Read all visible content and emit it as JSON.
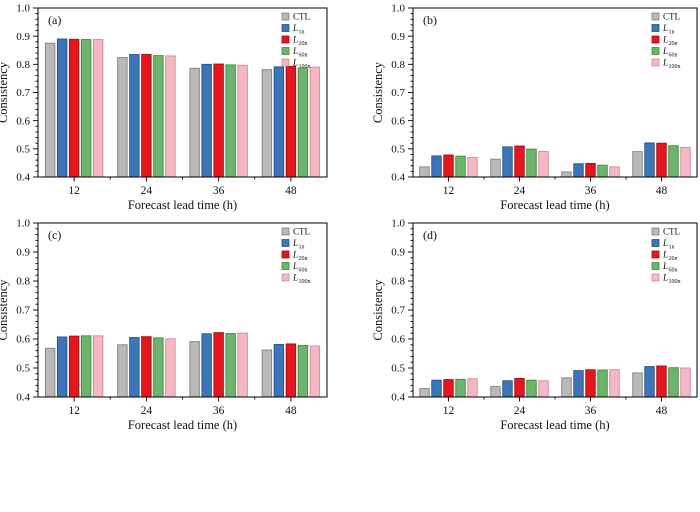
{
  "figure": {
    "background": "#ffffff",
    "text_color": "#111111",
    "axis_color": "#000000",
    "series_style": [
      {
        "key": "CTL",
        "label": "CTL",
        "sub": "",
        "fill": "#b9b9b9",
        "edge": "#808080"
      },
      {
        "key": "L1n",
        "label": "L",
        "sub": "1n",
        "fill": "#3b76ba",
        "edge": "#24558c"
      },
      {
        "key": "L20n",
        "label": "L",
        "sub": "20n",
        "fill": "#e8151d",
        "edge": "#a30d12"
      },
      {
        "key": "L60n",
        "label": "L",
        "sub": "60n",
        "fill": "#6cb66c",
        "edge": "#3f8a3f"
      },
      {
        "key": "L100n",
        "label": "L",
        "sub": "100n",
        "fill": "#f5b7c3",
        "edge": "#d08b9c"
      }
    ]
  },
  "chart_data": [
    {
      "type": "bar",
      "panel_label": "(a)",
      "categories": [
        "12",
        "24",
        "36",
        "48"
      ],
      "xlabel": "Forecast  lead  time  (h)",
      "ylabel": "Consistency",
      "ylim": [
        0.4,
        1.0
      ],
      "ytick_labels": [
        "0.4",
        "0.5",
        "0.6",
        "0.7",
        "0.8",
        "0.9",
        "1.0"
      ],
      "grid": false,
      "legend_position": "top-right",
      "series": [
        {
          "name": "CTL",
          "values": [
            0.875,
            0.824,
            0.786,
            0.781
          ]
        },
        {
          "name": "L1n",
          "values": [
            0.89,
            0.835,
            0.8,
            0.791
          ]
        },
        {
          "name": "L20n",
          "values": [
            0.889,
            0.835,
            0.801,
            0.793
          ]
        },
        {
          "name": "L60n",
          "values": [
            0.888,
            0.831,
            0.798,
            0.787
          ]
        },
        {
          "name": "L100n",
          "values": [
            0.888,
            0.83,
            0.797,
            0.79
          ]
        }
      ]
    },
    {
      "type": "bar",
      "panel_label": "(b)",
      "categories": [
        "12",
        "24",
        "36",
        "48"
      ],
      "xlabel": "Forecast  lead  time  (h)",
      "ylabel": "Consistency",
      "ylim": [
        0.4,
        1.0
      ],
      "ytick_labels": [
        "0.4",
        "0.5",
        "0.6",
        "0.7",
        "0.8",
        "0.9",
        "1.0"
      ],
      "grid": false,
      "legend_position": "top-right",
      "series": [
        {
          "name": "CTL",
          "values": [
            0.436,
            0.463,
            0.418,
            0.49
          ]
        },
        {
          "name": "L1n",
          "values": [
            0.475,
            0.507,
            0.447,
            0.521
          ]
        },
        {
          "name": "L20n",
          "values": [
            0.478,
            0.51,
            0.448,
            0.52
          ]
        },
        {
          "name": "L60n",
          "values": [
            0.474,
            0.499,
            0.442,
            0.511
          ]
        },
        {
          "name": "L100n",
          "values": [
            0.469,
            0.491,
            0.436,
            0.505
          ]
        }
      ]
    },
    {
      "type": "bar",
      "panel_label": "(c)",
      "categories": [
        "12",
        "24",
        "36",
        "48"
      ],
      "xlabel": "Forecast  lead  time  (h)",
      "ylabel": "Consistency",
      "ylim": [
        0.4,
        1.0
      ],
      "ytick_labels": [
        "0.4",
        "0.5",
        "0.6",
        "0.7",
        "0.8",
        "0.9",
        "1.0"
      ],
      "grid": false,
      "legend_position": "top-right",
      "series": [
        {
          "name": "CTL",
          "values": [
            0.568,
            0.58,
            0.591,
            0.562
          ]
        },
        {
          "name": "L1n",
          "values": [
            0.607,
            0.605,
            0.618,
            0.581
          ]
        },
        {
          "name": "L20n",
          "values": [
            0.61,
            0.608,
            0.622,
            0.583
          ]
        },
        {
          "name": "L60n",
          "values": [
            0.611,
            0.604,
            0.619,
            0.578
          ]
        },
        {
          "name": "L100n",
          "values": [
            0.611,
            0.601,
            0.62,
            0.576
          ]
        }
      ]
    },
    {
      "type": "bar",
      "panel_label": "(d)",
      "categories": [
        "12",
        "24",
        "36",
        "48"
      ],
      "xlabel": "Forecast  lead  time  (h)",
      "ylabel": "Consistency",
      "ylim": [
        0.4,
        1.0
      ],
      "ytick_labels": [
        "0.4",
        "0.5",
        "0.6",
        "0.7",
        "0.8",
        "0.9",
        "1.0"
      ],
      "grid": false,
      "legend_position": "top-right",
      "series": [
        {
          "name": "CTL",
          "values": [
            0.429,
            0.436,
            0.466,
            0.483
          ]
        },
        {
          "name": "L1n",
          "values": [
            0.458,
            0.456,
            0.491,
            0.505
          ]
        },
        {
          "name": "L20n",
          "values": [
            0.46,
            0.464,
            0.494,
            0.507
          ]
        },
        {
          "name": "L60n",
          "values": [
            0.461,
            0.458,
            0.493,
            0.501
          ]
        },
        {
          "name": "L100n",
          "values": [
            0.463,
            0.456,
            0.494,
            0.5
          ]
        }
      ]
    }
  ]
}
